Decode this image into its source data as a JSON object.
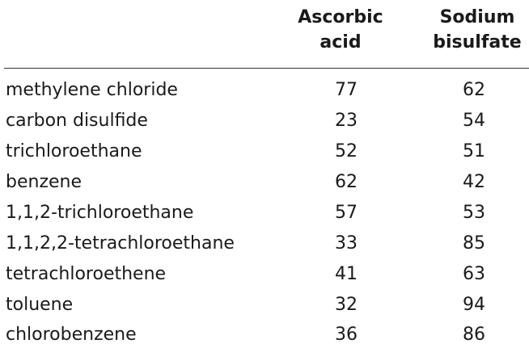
{
  "table": {
    "headers": {
      "col1": [
        "Ascorbic",
        "acid"
      ],
      "col2": [
        "Sodium",
        "bisulfate"
      ]
    },
    "rows": [
      {
        "name": "methylene chloride",
        "ascorbic_acid": "77",
        "sodium_bisulfate": "62"
      },
      {
        "name": "carbon disulfide",
        "ascorbic_acid": "23",
        "sodium_bisulfate": "54"
      },
      {
        "name": "trichloroethane",
        "ascorbic_acid": "52",
        "sodium_bisulfate": "51"
      },
      {
        "name": "benzene",
        "ascorbic_acid": "62",
        "sodium_bisulfate": "42"
      },
      {
        "name": "1,1,2-trichloroethane",
        "ascorbic_acid": "57",
        "sodium_bisulfate": "53"
      },
      {
        "name": "1,1,2,2-tetrachloroethane",
        "ascorbic_acid": "33",
        "sodium_bisulfate": "85"
      },
      {
        "name": "tetrachloroethene",
        "ascorbic_acid": "41",
        "sodium_bisulfate": "63"
      },
      {
        "name": "toluene",
        "ascorbic_acid": "32",
        "sodium_bisulfate": "94"
      },
      {
        "name": "chlorobenzene",
        "ascorbic_acid": "36",
        "sodium_bisulfate": "86"
      }
    ]
  }
}
